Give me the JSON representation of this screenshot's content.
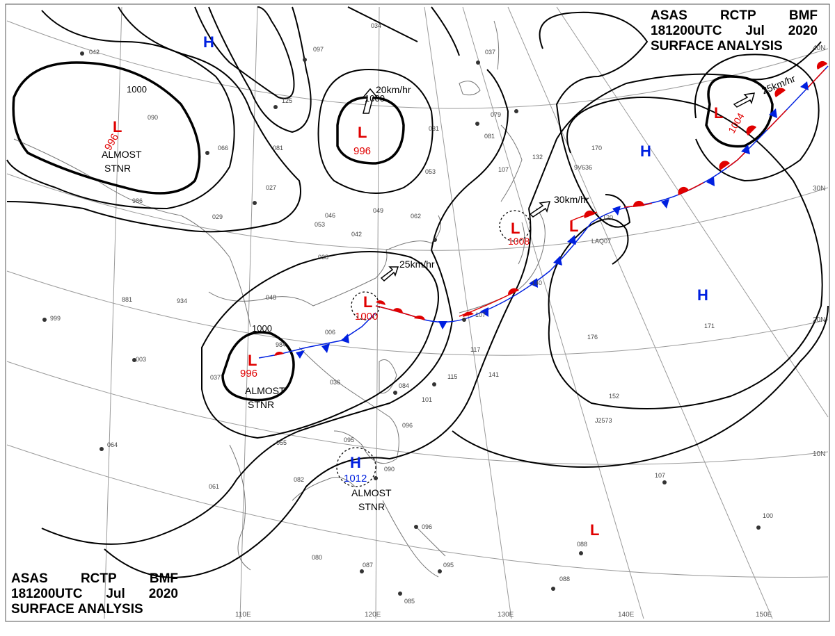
{
  "header": {
    "agency_line": [
      "ASAS",
      "RCTP",
      "BMF"
    ],
    "time_line": [
      "181200UTC",
      "Jul",
      "2020"
    ],
    "product": "SURFACE ANALYSIS"
  },
  "latitude_labels": [
    "40N",
    "30N",
    "20N",
    "10N"
  ],
  "longitude_labels": [
    "110E",
    "120E",
    "130E",
    "140E",
    "150E"
  ],
  "isobar_labels": [
    "1000",
    "1000",
    "1000"
  ],
  "pressure_systems": [
    {
      "type": "L",
      "value": "996",
      "note": "ALMOST STNR",
      "color": "#e00000"
    },
    {
      "type": "L",
      "value": "996",
      "motion": "20km/hr",
      "color": "#e00000"
    },
    {
      "type": "L",
      "value": "1000",
      "motion": "25km/hr",
      "color": "#e00000"
    },
    {
      "type": "L",
      "value": "996",
      "note": "ALMOST STNR",
      "color": "#e00000"
    },
    {
      "type": "L",
      "value": "1008",
      "motion": "30km/hr",
      "color": "#e00000"
    },
    {
      "type": "L",
      "value": "1004",
      "motion": "25km/hr",
      "color": "#e00000"
    },
    {
      "type": "L",
      "value": "",
      "color": "#e00000"
    },
    {
      "type": "L",
      "value": "",
      "color": "#e00000"
    },
    {
      "type": "H",
      "value": "",
      "color": "#0020e0"
    },
    {
      "type": "H",
      "value": "",
      "color": "#0020e0"
    },
    {
      "type": "H",
      "value": "",
      "color": "#0020e0"
    },
    {
      "type": "H",
      "value": "1012",
      "note": "ALMOST STNR",
      "color": "#0020e0"
    }
  ],
  "station_obs": [
    "034",
    "097",
    "037",
    "079",
    "081",
    "031",
    "107",
    "132",
    "170",
    "053",
    "062",
    "049",
    "046",
    "027",
    "029",
    "053",
    "042",
    "038",
    "934",
    "881",
    "999",
    "003",
    "048",
    "006",
    "984",
    "036",
    "037",
    "095",
    "084",
    "101",
    "096",
    "055",
    "064",
    "082",
    "061",
    "090",
    "096",
    "095",
    "080",
    "087",
    "085",
    "088",
    "088",
    "100",
    "107",
    "152",
    "176",
    "171",
    "140",
    "115",
    "141",
    "117",
    "107",
    "120",
    "125",
    "081",
    "066",
    "090",
    "042",
    "986"
  ],
  "ship_ids": [
    "LAQ07",
    "9V636",
    "J2573"
  ]
}
